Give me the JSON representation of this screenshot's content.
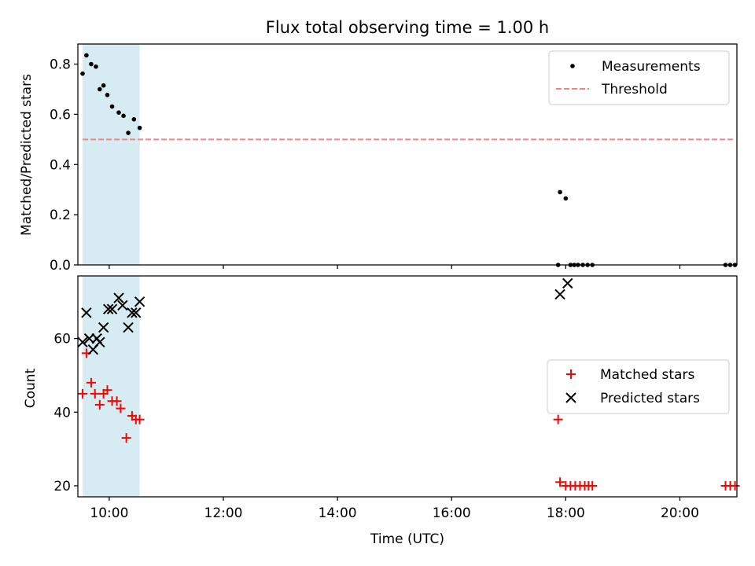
{
  "figure": {
    "title": "Flux total observing time = 1.00 h"
  },
  "colors": {
    "measurement": "#000000",
    "threshold": "#ff7f7f",
    "matched": "#ff0000",
    "predicted": "#000000",
    "highlight": "#add8e6"
  },
  "chart_data": [
    {
      "type": "scatter",
      "panel": "top",
      "title": "Flux total observing time = 1.00 h",
      "xlabel": "",
      "ylabel": "Matched/Predicted stars",
      "xlim": [
        "09:27",
        "21:00"
      ],
      "ylim": [
        0,
        0.88
      ],
      "yticks": [
        0.0,
        0.2,
        0.4,
        0.6,
        0.8
      ],
      "ytick_labels": [
        "0.0",
        "0.2",
        "0.4",
        "0.6",
        "0.8"
      ],
      "xticks": [
        "10:00",
        "12:00",
        "14:00",
        "16:00",
        "18:00",
        "20:00"
      ],
      "show_xtick_labels": false,
      "legend_position": "top-right",
      "highlight_span": [
        "09:32",
        "10:32"
      ],
      "series": [
        {
          "name": "Measurements",
          "type": "scatter",
          "marker": "dot",
          "x": [
            "09:32",
            "09:36",
            "09:41",
            "09:46",
            "09:50",
            "09:54",
            "09:58",
            "10:03",
            "10:10",
            "10:15",
            "10:20",
            "10:26",
            "10:32",
            "17:52",
            "17:54",
            "18:00",
            "18:05",
            "18:09",
            "18:13",
            "18:18",
            "18:23",
            "18:28",
            "20:48",
            "20:53",
            "20:58"
          ],
          "y": [
            0.762,
            0.835,
            0.8,
            0.79,
            0.7,
            0.715,
            0.677,
            0.631,
            0.607,
            0.594,
            0.526,
            0.58,
            0.546,
            0.0,
            0.29,
            0.265,
            0.0,
            0.0,
            0.0,
            0.0,
            0.0,
            0.0,
            0.0,
            0.0,
            0.0
          ]
        },
        {
          "name": "Threshold",
          "type": "line",
          "style": "dashed",
          "x": [
            "09:32",
            "20:58"
          ],
          "y": [
            0.5,
            0.5
          ]
        }
      ]
    },
    {
      "type": "scatter",
      "panel": "bottom",
      "xlabel": "Time (UTC)",
      "ylabel": "Count",
      "xlim": [
        "09:27",
        "21:00"
      ],
      "ylim": [
        17,
        77
      ],
      "yticks": [
        20,
        40,
        60
      ],
      "ytick_labels": [
        "20",
        "40",
        "60"
      ],
      "xticks": [
        "10:00",
        "12:00",
        "14:00",
        "16:00",
        "18:00",
        "20:00"
      ],
      "xtick_labels": [
        "10:00",
        "12:00",
        "14:00",
        "16:00",
        "18:00",
        "20:00"
      ],
      "legend_position": "center-right",
      "highlight_span": [
        "09:32",
        "10:32"
      ],
      "series": [
        {
          "name": "Matched stars",
          "marker": "plus",
          "x": [
            "09:32",
            "09:36",
            "09:41",
            "09:45",
            "09:50",
            "09:54",
            "09:58",
            "10:03",
            "10:08",
            "10:12",
            "10:18",
            "10:24",
            "10:28",
            "10:32",
            "17:52",
            "17:54",
            "18:00",
            "18:05",
            "18:10",
            "18:15",
            "18:20",
            "18:24",
            "18:28",
            "20:48",
            "20:53",
            "20:58"
          ],
          "y": [
            45,
            56,
            48,
            45,
            42,
            45,
            46,
            43,
            43,
            41,
            33,
            39,
            38,
            38,
            38,
            21,
            20,
            20,
            20,
            20,
            20,
            20,
            20,
            20,
            20,
            20
          ]
        },
        {
          "name": "Predicted stars",
          "marker": "x",
          "x": [
            "09:32",
            "09:36",
            "09:39",
            "09:43",
            "09:47",
            "09:50",
            "09:54",
            "09:59",
            "10:03",
            "10:10",
            "10:14",
            "10:20",
            "10:24",
            "10:28",
            "10:32",
            "17:54",
            "18:02"
          ],
          "y": [
            59,
            67,
            60,
            57,
            60,
            59,
            63,
            68,
            68,
            71,
            69,
            63,
            67,
            67,
            70,
            72,
            75
          ]
        }
      ]
    }
  ]
}
